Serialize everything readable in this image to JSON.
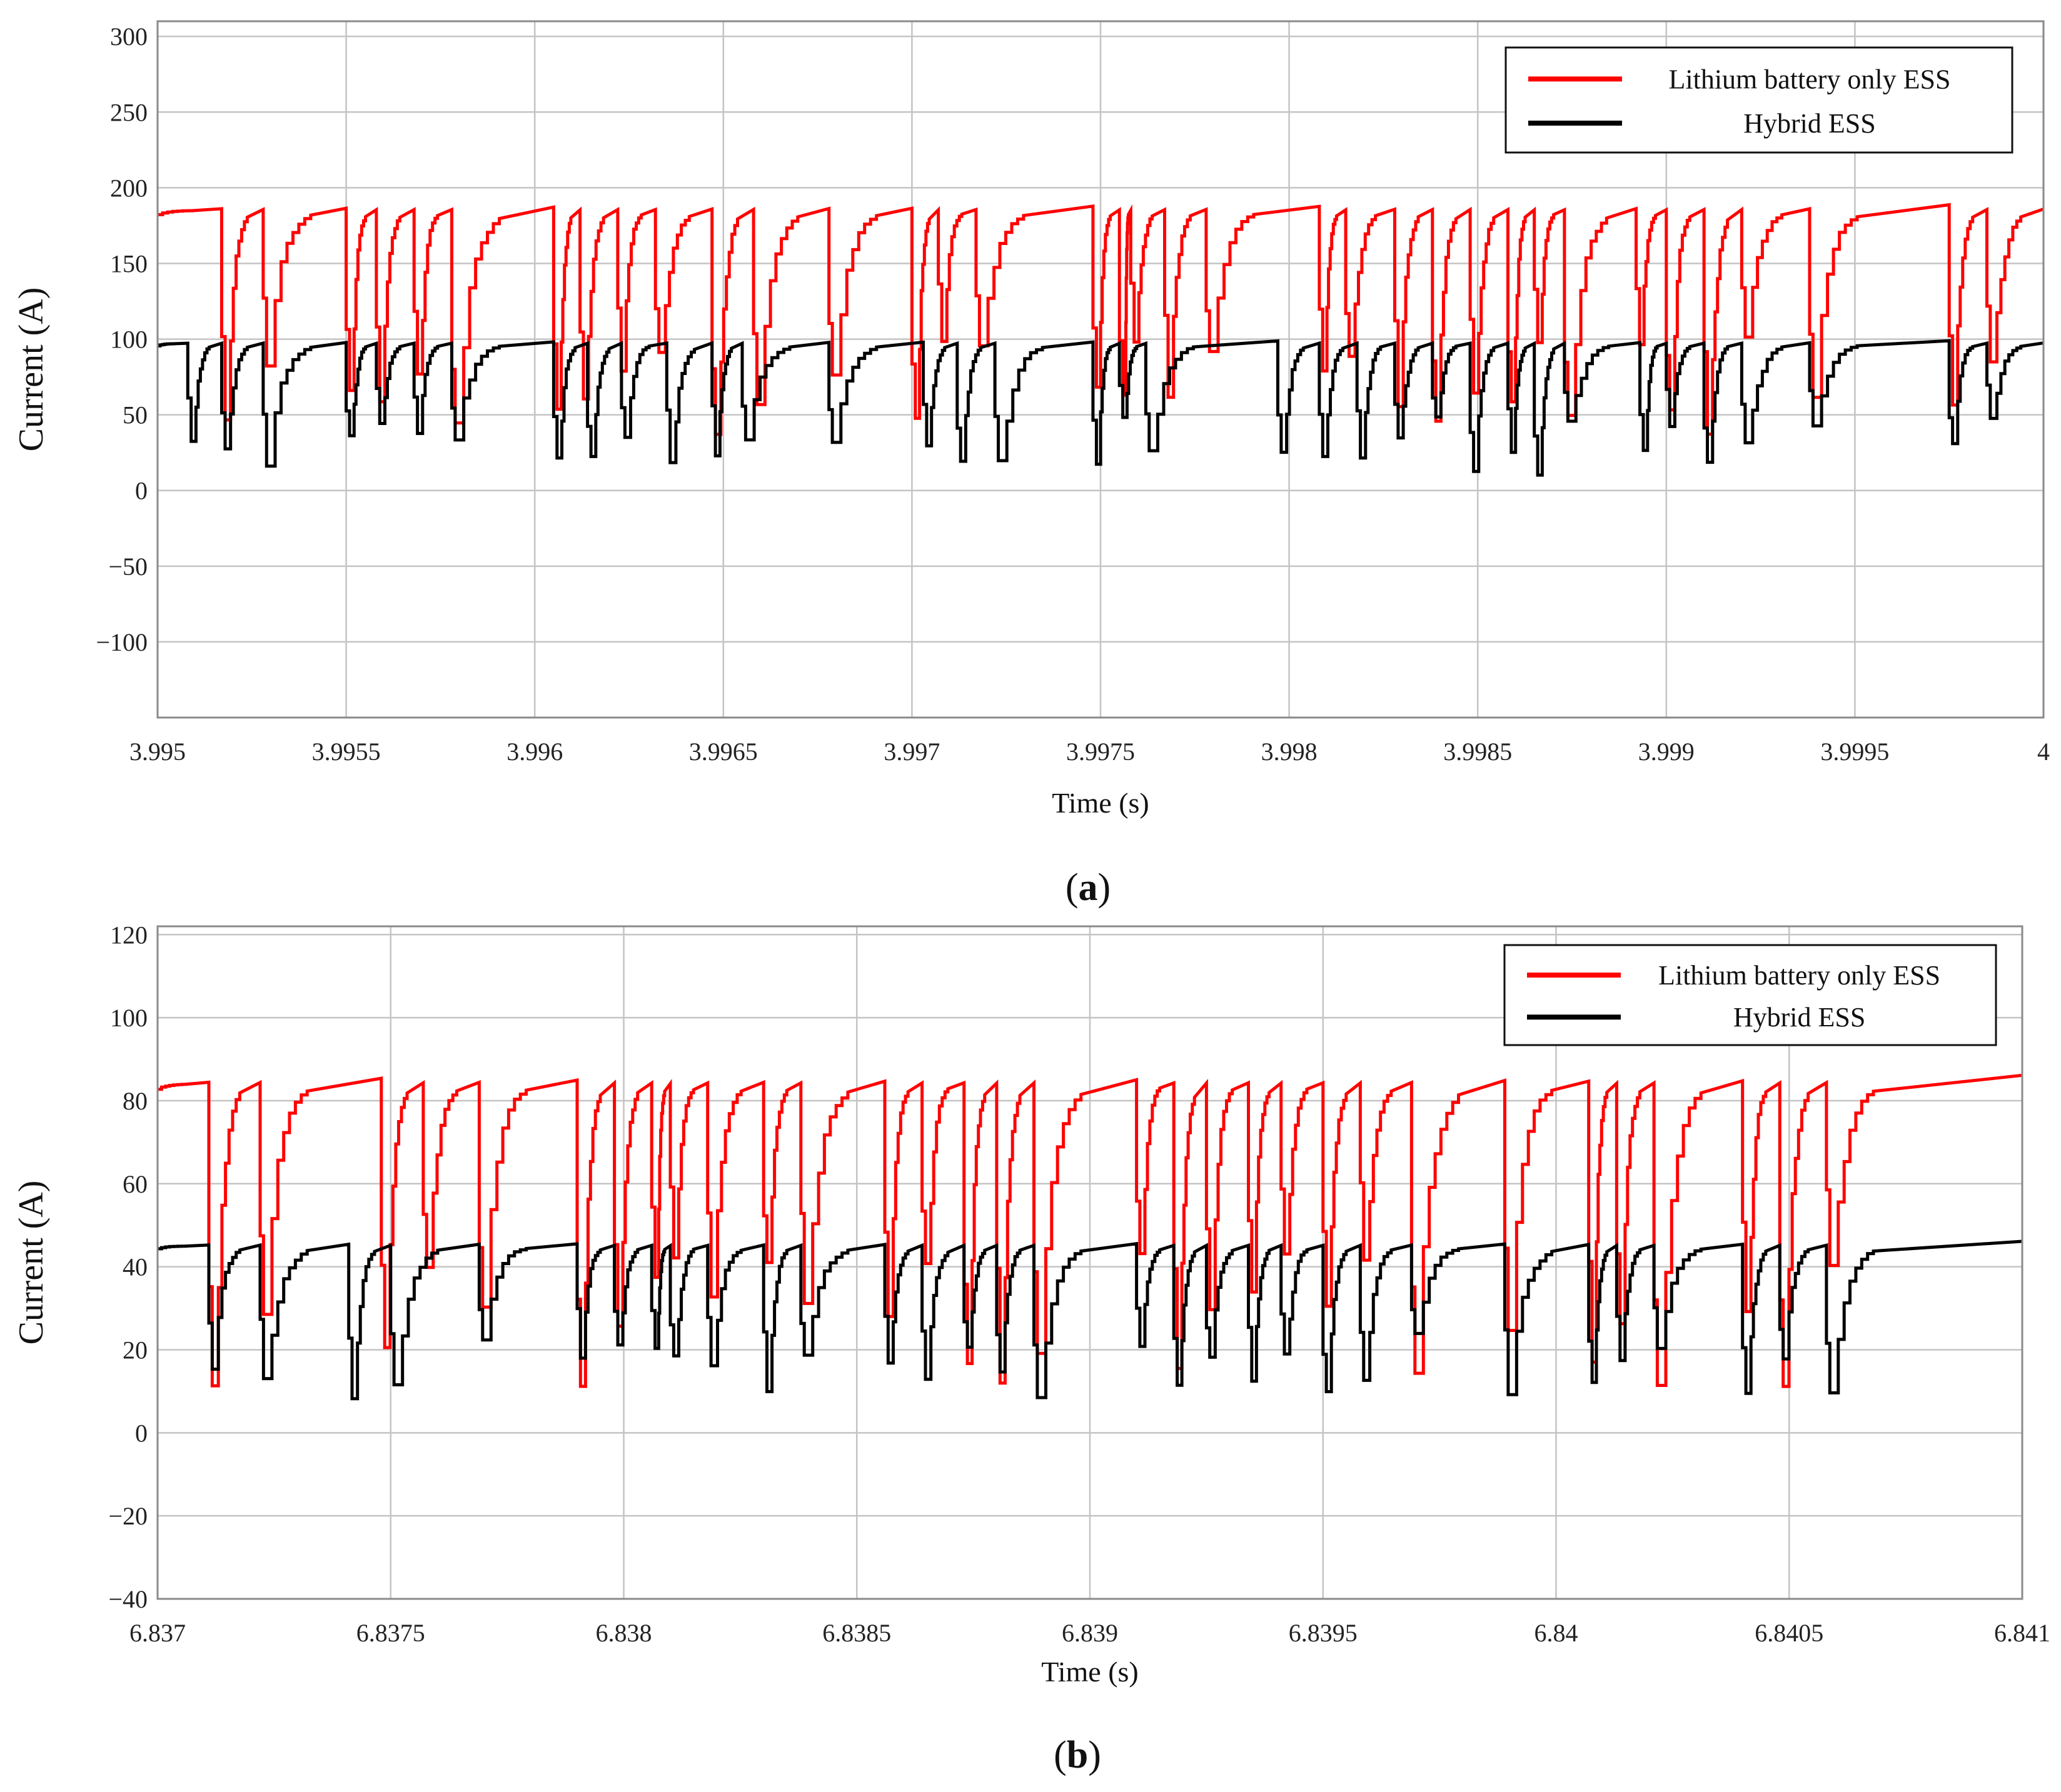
{
  "chart_data": [
    {
      "type": "line",
      "panel_label": "a",
      "xlabel": "Time (s)",
      "ylabel": "Current (A)",
      "xlim": [
        3.995,
        4.0
      ],
      "ylim": [
        -150,
        310
      ],
      "x_ticks": [
        3.995,
        3.9955,
        3.996,
        3.9965,
        3.997,
        3.9975,
        3.998,
        3.9985,
        3.999,
        3.9995,
        4.0
      ],
      "x_tick_labels": [
        "3.995",
        "3.9955",
        "3.996",
        "3.9965",
        "3.997",
        "3.9975",
        "3.998",
        "3.9985",
        "3.999",
        "3.9995",
        "4"
      ],
      "y_ticks": [
        300,
        250,
        200,
        150,
        100,
        50,
        0,
        -50,
        -100
      ],
      "y_tick_labels": [
        "300",
        "250",
        "200",
        "150",
        "100",
        "50",
        "0",
        "−50",
        "−100"
      ],
      "grid": true,
      "legend": "top-right",
      "series": [
        {
          "name": "Lithium battery only ESS",
          "color": "#ff0000",
          "high": 185,
          "low": 35,
          "events": [
            3.99517,
            3.99528,
            3.9955,
            3.99558,
            3.99568,
            3.99578,
            3.99605,
            3.99612,
            3.99622,
            3.99632,
            3.99647,
            3.99658,
            3.99678,
            3.997,
            3.99707,
            3.99717,
            3.99748,
            3.99755,
            3.99758,
            3.99767,
            3.99778,
            3.99808,
            3.99815,
            3.99828,
            3.99838,
            3.99848,
            3.99858,
            3.99865,
            3.99873,
            3.99892,
            3.999,
            3.9991,
            3.9992,
            3.99938,
            3.99975,
            3.99985
          ]
        },
        {
          "name": "Hybrid ESS",
          "color": "#000000",
          "high": 97,
          "low": 10,
          "events": [
            3.99508,
            3.99517,
            3.99528,
            3.9955,
            3.99558,
            3.99568,
            3.99578,
            3.99605,
            3.99614,
            3.99623,
            3.99635,
            3.99647,
            3.99655,
            3.99678,
            3.99703,
            3.99712,
            3.99722,
            3.99748,
            3.99755,
            3.99762,
            3.99797,
            3.99808,
            3.99818,
            3.99828,
            3.99838,
            3.99848,
            3.99858,
            3.99865,
            3.99873,
            3.99893,
            3.999,
            3.9991,
            3.9992,
            3.99938,
            3.99975,
            3.99985
          ]
        }
      ]
    },
    {
      "type": "line",
      "panel_label": "b",
      "xlabel": "Time (s)",
      "ylabel": "Current (A)",
      "xlim": [
        6.837,
        6.841
      ],
      "ylim": [
        -40,
        122
      ],
      "x_ticks": [
        6.837,
        6.8375,
        6.838,
        6.8385,
        6.839,
        6.8395,
        6.84,
        6.8405,
        6.841
      ],
      "x_tick_labels": [
        "6.837",
        "6.8375",
        "6.838",
        "6.8385",
        "6.839",
        "6.8395",
        "6.84",
        "6.8405",
        "6.841"
      ],
      "y_ticks": [
        120,
        100,
        80,
        60,
        40,
        20,
        0,
        -20,
        -40
      ],
      "y_tick_labels": [
        "120",
        "100",
        "80",
        "60",
        "40",
        "20",
        "0",
        "−20",
        "−40"
      ],
      "grid": true,
      "legend": "top-right",
      "series": [
        {
          "name": "Lithium battery only ESS",
          "color": "#ff0000",
          "high": 84,
          "low": 10,
          "events": [
            6.83711,
            6.83722,
            6.83748,
            6.83757,
            6.83769,
            6.8379,
            6.83798,
            6.83806,
            6.8381,
            6.83818,
            6.8383,
            6.83838,
            6.83856,
            6.83864,
            6.83873,
            6.8388,
            6.83888,
            6.8391,
            6.83918,
            6.83925,
            6.83934,
            6.83941,
            6.8395,
            6.83958,
            6.83969,
            6.83989,
            6.84007,
            6.84013,
            6.84021,
            6.8404,
            6.84048,
            6.84058
          ]
        },
        {
          "name": "Hybrid ESS",
          "color": "#000000",
          "high": 45,
          "low": 8,
          "events": [
            6.83711,
            6.83722,
            6.83741,
            6.8375,
            6.83769,
            6.8379,
            6.83798,
            6.83806,
            6.8381,
            6.83818,
            6.8383,
            6.83838,
            6.83856,
            6.83864,
            6.83873,
            6.8388,
            6.83888,
            6.8391,
            6.83918,
            6.83925,
            6.83934,
            6.83941,
            6.8395,
            6.83958,
            6.83969,
            6.83989,
            6.84007,
            6.84013,
            6.84021,
            6.8404,
            6.84048,
            6.84058
          ]
        }
      ]
    }
  ]
}
